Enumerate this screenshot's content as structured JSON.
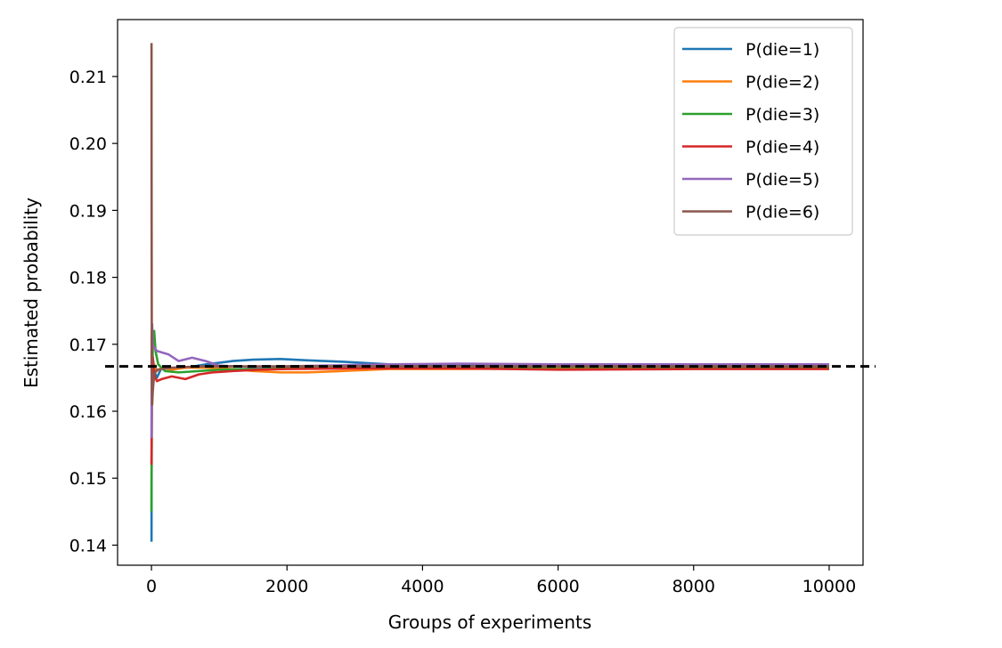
{
  "chart_data": {
    "type": "line",
    "title": "",
    "xlabel": "Groups of experiments",
    "ylabel": "Estimated probability",
    "xlim": [
      -500,
      10500
    ],
    "ylim": [
      0.137,
      0.2185
    ],
    "xticks": [
      0,
      2000,
      4000,
      6000,
      8000,
      10000
    ],
    "xtick_labels": [
      "0",
      "2000",
      "4000",
      "6000",
      "8000",
      "10000"
    ],
    "yticks": [
      0.14,
      0.15,
      0.16,
      0.17,
      0.18,
      0.19,
      0.2,
      0.21
    ],
    "ytick_labels": [
      "0.14",
      "0.15",
      "0.16",
      "0.17",
      "0.18",
      "0.19",
      "0.20",
      "0.21"
    ],
    "grid": false,
    "legend_position": "top-right",
    "reference_line": {
      "y": 0.1667,
      "style": "dashed",
      "color": "#000000"
    },
    "series": [
      {
        "name": "P(die=1)",
        "color": "#1f77b4",
        "x": [
          1,
          3,
          6,
          10,
          20,
          40,
          80,
          150,
          300,
          500,
          800,
          1200,
          1500,
          1900,
          2300,
          2800,
          3500,
          4500,
          6000,
          8000,
          10000
        ],
        "y": [
          0.1405,
          0.158,
          0.171,
          0.164,
          0.168,
          0.166,
          0.165,
          0.1665,
          0.1665,
          0.1665,
          0.167,
          0.1675,
          0.1677,
          0.1678,
          0.1676,
          0.1674,
          0.167,
          0.1668,
          0.1668,
          0.1668,
          0.1668
        ]
      },
      {
        "name": "P(die=2)",
        "color": "#ff7f0e",
        "x": [
          1,
          3,
          6,
          10,
          20,
          40,
          80,
          150,
          300,
          500,
          800,
          1200,
          1500,
          1900,
          2300,
          2800,
          3500,
          4500,
          6000,
          8000,
          10000
        ],
        "y": [
          0.166,
          0.172,
          0.161,
          0.168,
          0.164,
          0.167,
          0.166,
          0.1665,
          0.1662,
          0.1665,
          0.1665,
          0.1663,
          0.166,
          0.1658,
          0.1658,
          0.166,
          0.1663,
          0.1663,
          0.1664,
          0.1665,
          0.1665
        ]
      },
      {
        "name": "P(die=3)",
        "color": "#2ca02c",
        "x": [
          1,
          3,
          6,
          10,
          20,
          40,
          60,
          100,
          200,
          400,
          700,
          1000,
          1500,
          2000,
          3000,
          4500,
          6000,
          8000,
          10000
        ],
        "y": [
          0.145,
          0.152,
          0.167,
          0.161,
          0.1705,
          0.172,
          0.169,
          0.167,
          0.166,
          0.1658,
          0.166,
          0.1662,
          0.1663,
          0.1664,
          0.1665,
          0.1665,
          0.1666,
          0.1666,
          0.1666
        ]
      },
      {
        "name": "P(die=4)",
        "color": "#d62728",
        "x": [
          1,
          3,
          6,
          10,
          20,
          40,
          80,
          150,
          300,
          500,
          700,
          900,
          1200,
          1600,
          2000,
          3000,
          4500,
          6000,
          8000,
          10000
        ],
        "y": [
          0.152,
          0.1555,
          0.162,
          0.165,
          0.168,
          0.1655,
          0.1645,
          0.1648,
          0.1652,
          0.1648,
          0.1655,
          0.1658,
          0.166,
          0.1662,
          0.1663,
          0.1664,
          0.1664,
          0.1662,
          0.1663,
          0.1663
        ]
      },
      {
        "name": "P(die=5)",
        "color": "#9467bd",
        "x": [
          1,
          3,
          6,
          10,
          20,
          40,
          80,
          150,
          250,
          400,
          600,
          800,
          1000,
          1500,
          2500,
          3500,
          4500,
          6000,
          8000,
          10000
        ],
        "y": [
          0.156,
          0.164,
          0.172,
          0.173,
          0.17,
          0.1695,
          0.169,
          0.1688,
          0.1685,
          0.1675,
          0.168,
          0.1675,
          0.1668,
          0.1666,
          0.1668,
          0.167,
          0.1671,
          0.167,
          0.167,
          0.167
        ]
      },
      {
        "name": "P(die=6)",
        "color": "#8c564b",
        "x": [
          1,
          2,
          4,
          6,
          10,
          20,
          40,
          80,
          150,
          300,
          500,
          800,
          1200,
          2000,
          3000,
          4500,
          6000,
          8000,
          10000
        ],
        "y": [
          0.215,
          0.197,
          0.178,
          0.165,
          0.161,
          0.163,
          0.1655,
          0.1662,
          0.1663,
          0.1665,
          0.1666,
          0.1667,
          0.1667,
          0.1667,
          0.1667,
          0.1667,
          0.1667,
          0.1667,
          0.1667
        ]
      }
    ]
  }
}
